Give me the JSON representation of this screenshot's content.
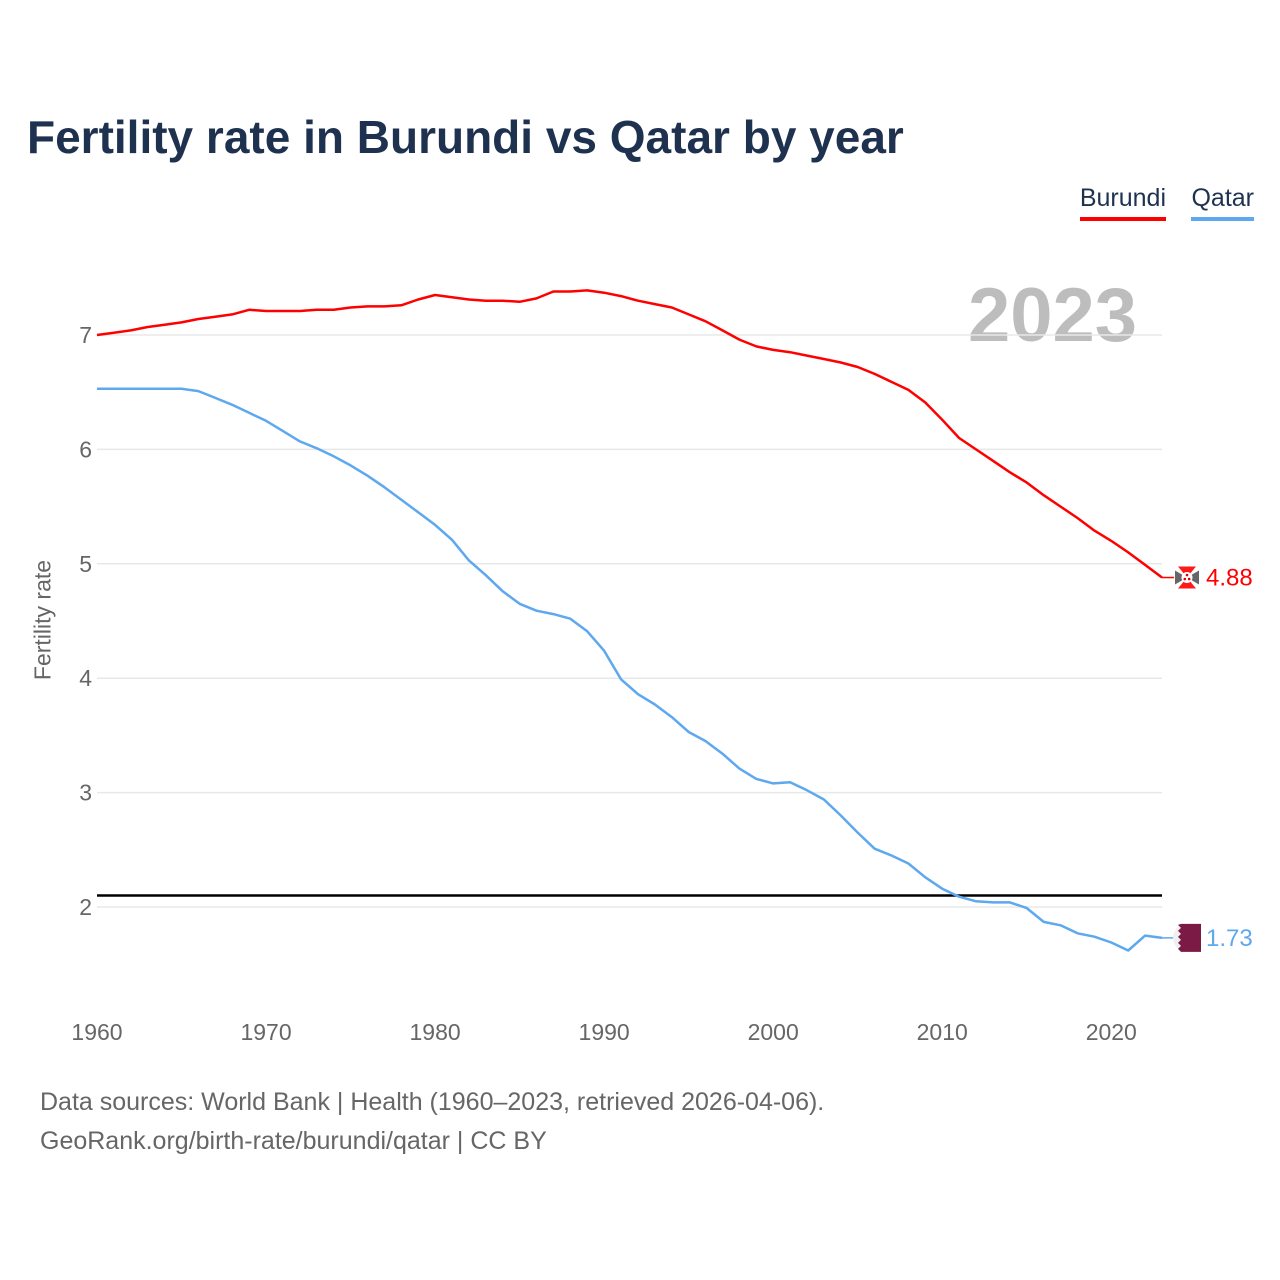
{
  "chart_data": {
    "type": "line",
    "title": "Fertility rate in Burundi vs Qatar by year",
    "ylabel": "Fertility rate",
    "xlabel": "",
    "current_year_label": "2023",
    "xlim": [
      1960,
      2023
    ],
    "ylim": [
      1.2,
      7.6
    ],
    "xticks": [
      "1960",
      "1970",
      "1980",
      "1990",
      "2000",
      "2010",
      "2020"
    ],
    "yticks": [
      "2",
      "3",
      "4",
      "5",
      "6",
      "7"
    ],
    "reference_line": 2.1,
    "grid": true,
    "legend_position": "top-right",
    "x_start": 1960,
    "series": [
      {
        "name": "Burundi",
        "color": "#ff0000",
        "end_label": "4.88",
        "values": [
          7.0,
          7.02,
          7.04,
          7.07,
          7.09,
          7.11,
          7.14,
          7.16,
          7.18,
          7.22,
          7.21,
          7.21,
          7.21,
          7.22,
          7.22,
          7.24,
          7.25,
          7.25,
          7.26,
          7.31,
          7.35,
          7.33,
          7.31,
          7.3,
          7.3,
          7.29,
          7.32,
          7.38,
          7.38,
          7.39,
          7.37,
          7.34,
          7.3,
          7.27,
          7.24,
          7.18,
          7.12,
          7.04,
          6.96,
          6.9,
          6.87,
          6.85,
          6.82,
          6.79,
          6.76,
          6.72,
          6.66,
          6.59,
          6.52,
          6.41,
          6.26,
          6.1,
          6.0,
          5.9,
          5.8,
          5.71,
          5.6,
          5.5,
          5.4,
          5.29,
          5.2,
          5.1,
          4.99,
          4.88
        ]
      },
      {
        "name": "Qatar",
        "color": "#5da8ee",
        "end_label": "1.73",
        "values": [
          6.53,
          6.53,
          6.53,
          6.53,
          6.53,
          6.53,
          6.51,
          6.45,
          6.39,
          6.32,
          6.25,
          6.16,
          6.07,
          6.01,
          5.94,
          5.86,
          5.77,
          5.67,
          5.56,
          5.45,
          5.34,
          5.21,
          5.03,
          4.9,
          4.76,
          4.65,
          4.59,
          4.56,
          4.52,
          4.41,
          4.24,
          3.99,
          3.86,
          3.77,
          3.66,
          3.53,
          3.45,
          3.34,
          3.21,
          3.12,
          3.08,
          3.09,
          3.02,
          2.94,
          2.8,
          2.65,
          2.51,
          2.45,
          2.38,
          2.26,
          2.16,
          2.09,
          2.05,
          2.04,
          2.04,
          1.99,
          1.87,
          1.84,
          1.77,
          1.74,
          1.69,
          1.62,
          1.75,
          1.73
        ]
      }
    ]
  },
  "footer": {
    "sources": "Data sources: World Bank | Health (1960–2023, retrieved 2026-04-06).",
    "credit": "GeoRank.org/birth-rate/burundi/qatar | CC BY"
  }
}
